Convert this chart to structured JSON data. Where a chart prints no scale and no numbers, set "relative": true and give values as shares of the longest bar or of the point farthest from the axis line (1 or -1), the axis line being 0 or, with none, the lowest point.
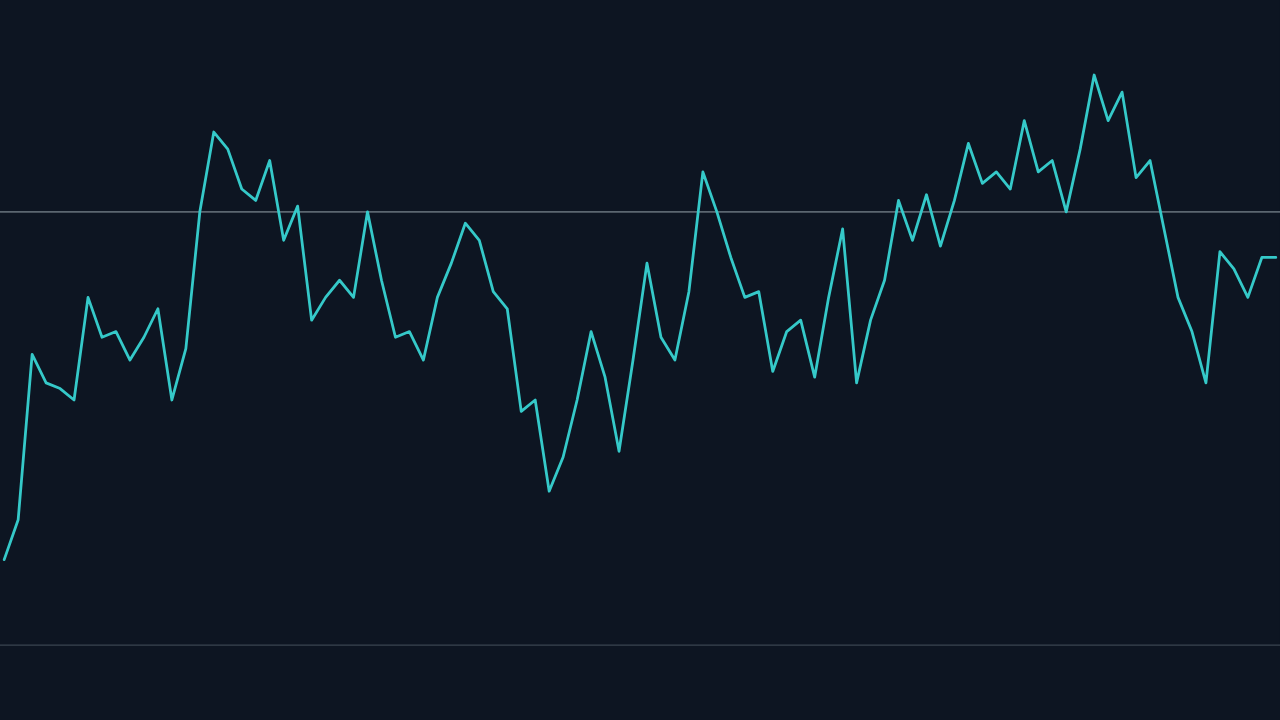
{
  "chart_data": {
    "type": "line",
    "relative": true,
    "color": "#35c9c9",
    "categories": [
      null,
      null,
      null,
      null,
      null,
      null,
      null,
      null,
      null,
      null,
      null,
      null,
      null,
      null,
      null,
      null,
      null,
      null,
      null,
      null,
      null,
      null,
      null,
      null,
      null,
      null,
      null,
      null,
      null,
      null,
      null,
      null,
      null,
      null,
      null,
      null,
      null,
      null,
      null,
      null,
      null,
      null,
      null,
      null,
      null,
      null,
      null,
      null,
      null,
      null,
      null,
      null,
      null,
      null,
      null,
      null,
      null,
      null,
      null,
      null,
      null,
      null,
      null,
      null,
      null,
      null,
      null,
      null,
      null,
      null,
      null,
      null,
      null,
      null,
      null,
      null,
      null,
      null,
      null,
      null,
      null,
      null,
      null,
      null,
      null,
      null,
      null,
      null,
      null,
      null,
      null,
      null
    ],
    "values": [
      0.15,
      0.22,
      0.51,
      0.46,
      0.45,
      0.43,
      0.61,
      0.54,
      0.55,
      0.5,
      0.54,
      0.59,
      0.43,
      0.52,
      0.76,
      0.9,
      0.87,
      0.8,
      0.78,
      0.85,
      0.71,
      0.77,
      0.57,
      0.61,
      0.64,
      0.61,
      0.76,
      0.64,
      0.54,
      0.55,
      0.5,
      0.61,
      0.67,
      0.74,
      0.71,
      0.62,
      0.59,
      0.41,
      0.43,
      0.27,
      0.33,
      0.43,
      0.55,
      0.47,
      0.34,
      0.5,
      0.67,
      0.54,
      0.5,
      0.62,
      0.83,
      0.76,
      0.68,
      0.61,
      0.62,
      0.48,
      0.55,
      0.57,
      0.47,
      0.61,
      0.73,
      0.46,
      0.57,
      0.64,
      0.78,
      0.71,
      0.79,
      0.7,
      0.78,
      0.88,
      0.81,
      0.83,
      0.8,
      0.92,
      0.83,
      0.85,
      0.76,
      0.87,
      1,
      0.92,
      0.97,
      0.82,
      0.85,
      0.73,
      0.61,
      0.55,
      0.46,
      0.69,
      0.66,
      0.61,
      0.68,
      0.68
    ],
    "ref_lines": [
      {
        "axis": "y",
        "value": 0.76,
        "color": "#5b6670",
        "line_style": "solid"
      }
    ],
    "grid": false,
    "legend": false,
    "marker": "none",
    "line_style": "solid"
  }
}
